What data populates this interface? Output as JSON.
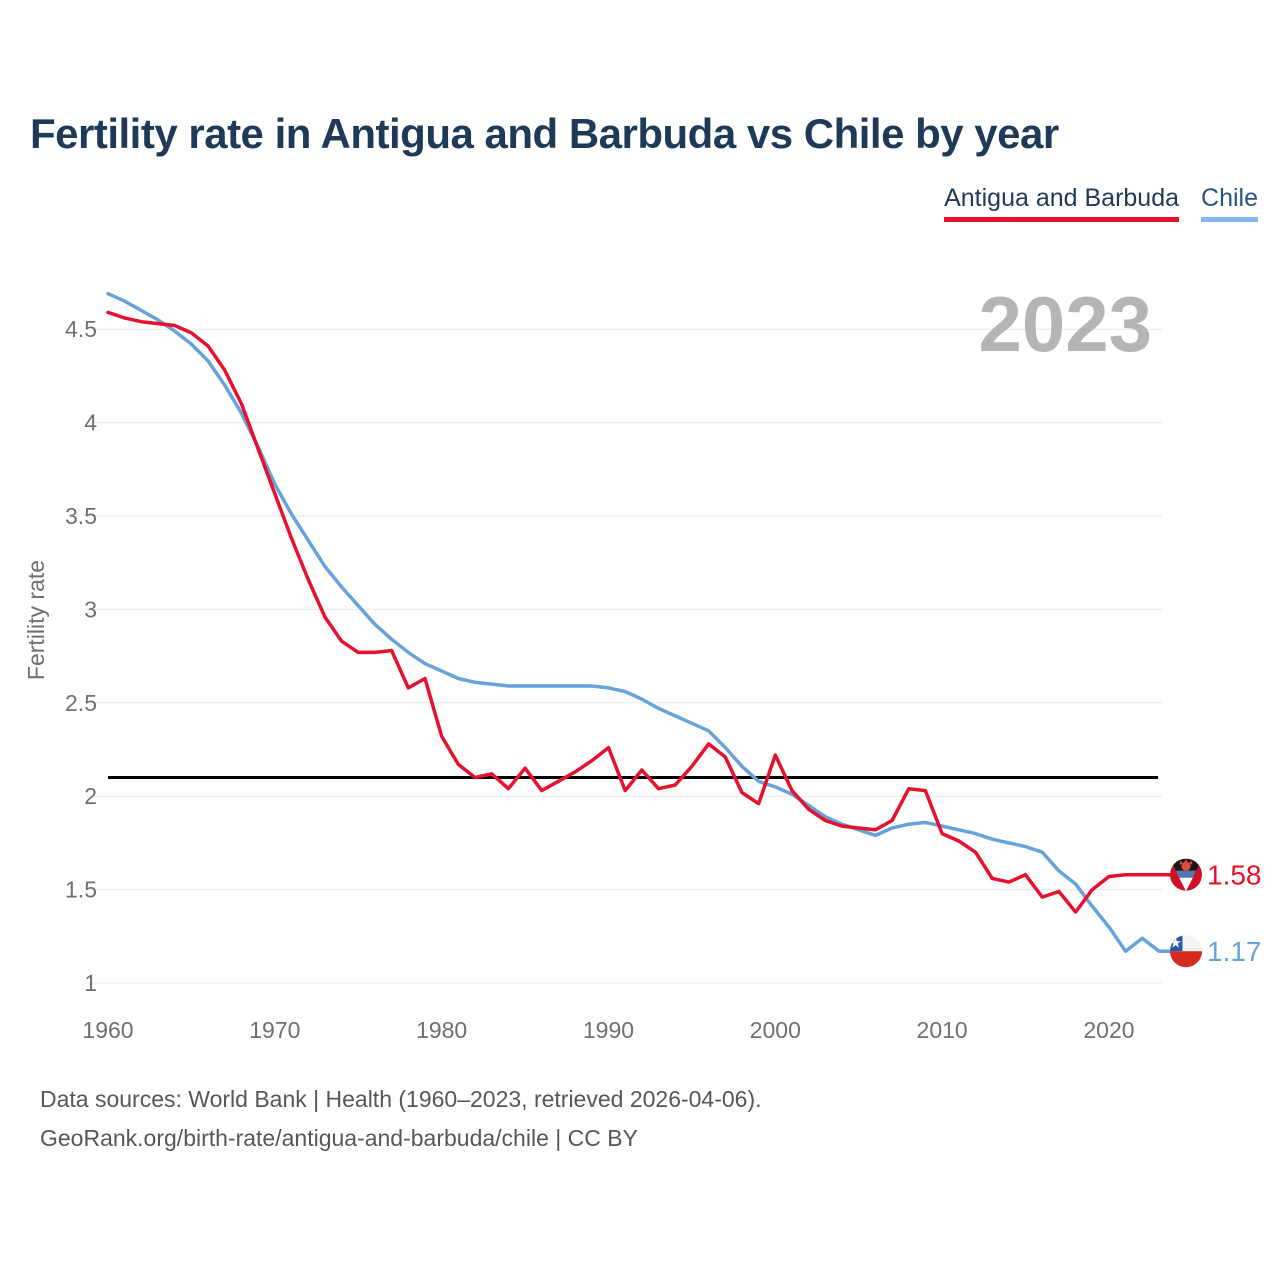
{
  "header": {
    "title": "Fertility rate in Antigua and Barbuda vs Chile by year"
  },
  "legend": {
    "items": [
      {
        "label": "Antigua and Barbuda",
        "text_color": "#1e3a57",
        "underline_color": "#e8112d"
      },
      {
        "label": "Chile",
        "text_color": "#2b5580",
        "underline_color": "#85b8e8"
      }
    ]
  },
  "footer": {
    "line1": "Data sources: World Bank | Health (1960–2023, retrieved 2026-04-06).",
    "line2": "GeoRank.org/birth-rate/antigua-and-barbuda/chile | CC BY"
  },
  "chart_data": {
    "type": "line",
    "title": "Fertility rate in Antigua and Barbuda vs Chile by year",
    "xlabel": "",
    "ylabel": "Fertility rate",
    "watermark": "2023",
    "watermark_color": "#b5b5b7",
    "grid": "horizontal-only",
    "gridline_color": "#e9e9ec",
    "tick_color": "#6f6f74",
    "legend_position": "top-right",
    "xlim": [
      1960,
      2023
    ],
    "ylim": [
      1,
      4.8
    ],
    "x_ticks": [
      1960,
      1970,
      1980,
      1990,
      2000,
      2010,
      2020
    ],
    "y_ticks": [
      1,
      1.5,
      2,
      2.5,
      3,
      3.5,
      4,
      4.5
    ],
    "reference_line": {
      "value": 2.1,
      "color": "#000000"
    },
    "x": [
      1960,
      1961,
      1962,
      1963,
      1964,
      1965,
      1966,
      1967,
      1968,
      1969,
      1970,
      1971,
      1972,
      1973,
      1974,
      1975,
      1976,
      1977,
      1978,
      1979,
      1980,
      1981,
      1982,
      1983,
      1984,
      1985,
      1986,
      1987,
      1988,
      1989,
      1990,
      1991,
      1992,
      1993,
      1994,
      1995,
      1996,
      1997,
      1998,
      1999,
      2000,
      2001,
      2002,
      2003,
      2004,
      2005,
      2006,
      2007,
      2008,
      2009,
      2010,
      2011,
      2012,
      2013,
      2014,
      2015,
      2016,
      2017,
      2018,
      2019,
      2020,
      2021,
      2022,
      2023
    ],
    "series": [
      {
        "name": "Antigua and Barbuda",
        "color": "#e8112d",
        "end_label": "1.58",
        "flag": "antigua-and-barbuda",
        "values": [
          4.59,
          4.56,
          4.54,
          4.53,
          4.52,
          4.48,
          4.41,
          4.28,
          4.1,
          3.86,
          3.62,
          3.38,
          3.16,
          2.96,
          2.83,
          2.77,
          2.77,
          2.78,
          2.58,
          2.63,
          2.32,
          2.17,
          2.1,
          2.12,
          2.04,
          2.15,
          2.03,
          2.08,
          2.13,
          2.19,
          2.26,
          2.03,
          2.14,
          2.04,
          2.06,
          2.16,
          2.28,
          2.21,
          2.02,
          1.96,
          2.22,
          2.03,
          1.93,
          1.87,
          1.84,
          1.83,
          1.82,
          1.87,
          2.04,
          2.03,
          1.8,
          1.76,
          1.7,
          1.56,
          1.54,
          1.58,
          1.46,
          1.49,
          1.38,
          1.5,
          1.57,
          1.58,
          1.58,
          1.58
        ]
      },
      {
        "name": "Chile",
        "color": "#68a2db",
        "end_label": "1.17",
        "flag": "chile",
        "values": [
          4.69,
          4.65,
          4.6,
          4.55,
          4.49,
          4.42,
          4.33,
          4.2,
          4.05,
          3.87,
          3.67,
          3.51,
          3.37,
          3.23,
          3.12,
          3.02,
          2.92,
          2.84,
          2.77,
          2.71,
          2.67,
          2.63,
          2.61,
          2.6,
          2.59,
          2.59,
          2.59,
          2.59,
          2.59,
          2.59,
          2.58,
          2.56,
          2.52,
          2.47,
          2.43,
          2.39,
          2.35,
          2.26,
          2.16,
          2.08,
          2.05,
          2.01,
          1.95,
          1.89,
          1.85,
          1.82,
          1.79,
          1.83,
          1.85,
          1.86,
          1.84,
          1.82,
          1.8,
          1.77,
          1.75,
          1.73,
          1.7,
          1.6,
          1.53,
          1.41,
          1.3,
          1.17,
          1.24,
          1.17
        ]
      }
    ]
  }
}
